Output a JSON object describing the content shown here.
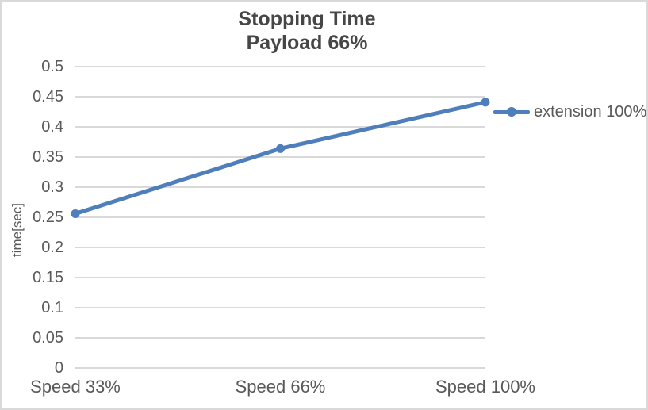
{
  "chart": {
    "title_line1": "Stopping Time",
    "title_line2": "Payload 66%",
    "y_axis_label": "time[sec]",
    "legend_label": "extension 100%",
    "colors": {
      "series": "#4E7EBB",
      "grid": "#D9D9D9",
      "axis_text": "#595959",
      "title_text": "#464646",
      "background": "#FFFFFF",
      "border": "#D9D9D9"
    }
  },
  "chart_data": {
    "type": "line",
    "title": "Stopping Time\nPayload 66%",
    "categories": [
      "Speed 33%",
      "Speed 66%",
      "Speed 100%"
    ],
    "series": [
      {
        "name": "extension 100%",
        "values": [
          0.256,
          0.364,
          0.441
        ]
      }
    ],
    "xlabel": "",
    "ylabel": "time[sec]",
    "ylim": [
      0,
      0.5
    ],
    "yticks": [
      "0",
      "0.05",
      "0.1",
      "0.15",
      "0.2",
      "0.25",
      "0.3",
      "0.35",
      "0.4",
      "0.45",
      "0.5"
    ],
    "grid": true,
    "legend_position": "right",
    "marker": "circle",
    "line_width": 5
  }
}
